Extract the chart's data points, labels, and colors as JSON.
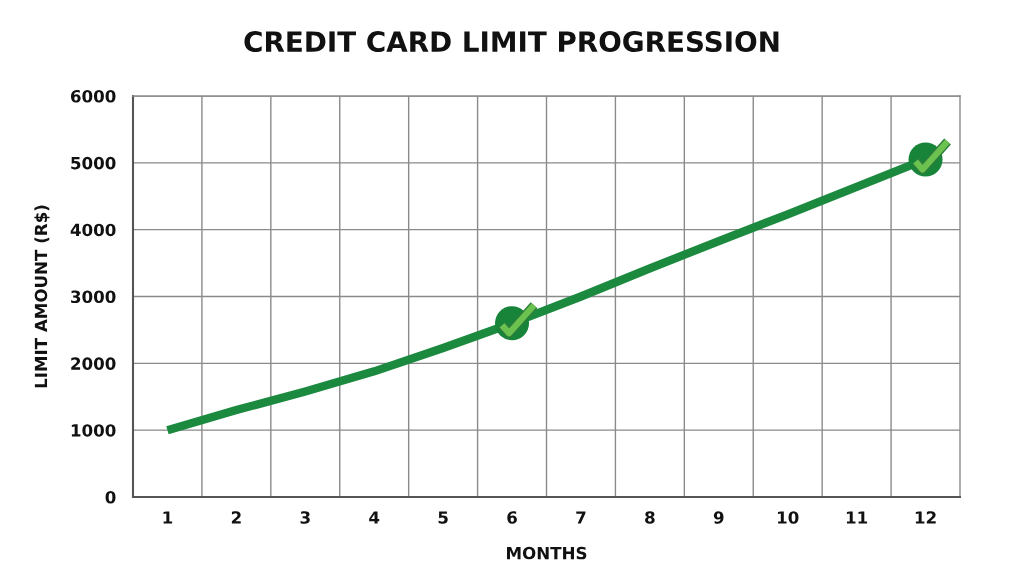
{
  "chart_data": {
    "type": "line",
    "title": "CREDIT CARD LIMIT PROGRESSION",
    "xlabel": "MONTHS",
    "ylabel": "LIMIT AMOUNT (R$)",
    "categories": [
      "1",
      "2",
      "3",
      "4",
      "5",
      "6",
      "7",
      "8",
      "9",
      "10",
      "11",
      "12"
    ],
    "series": [
      {
        "color": "#1b8a3f",
        "values": [
          1000,
          1300,
          1580,
          1880,
          2230,
          2600,
          3000,
          3420,
          3830,
          4230,
          4640,
          5050
        ]
      },
      {
        "type": "scatter",
        "color": "#17843a",
        "marker": "circle",
        "values": [
          null,
          null,
          null,
          null,
          null,
          2600,
          null,
          null,
          null,
          null,
          null,
          5050
        ]
      }
    ],
    "ylim": [
      0,
      6000
    ],
    "yticks": [
      0,
      1000,
      2000,
      3000,
      4000,
      5000,
      6000
    ],
    "grid": true
  }
}
